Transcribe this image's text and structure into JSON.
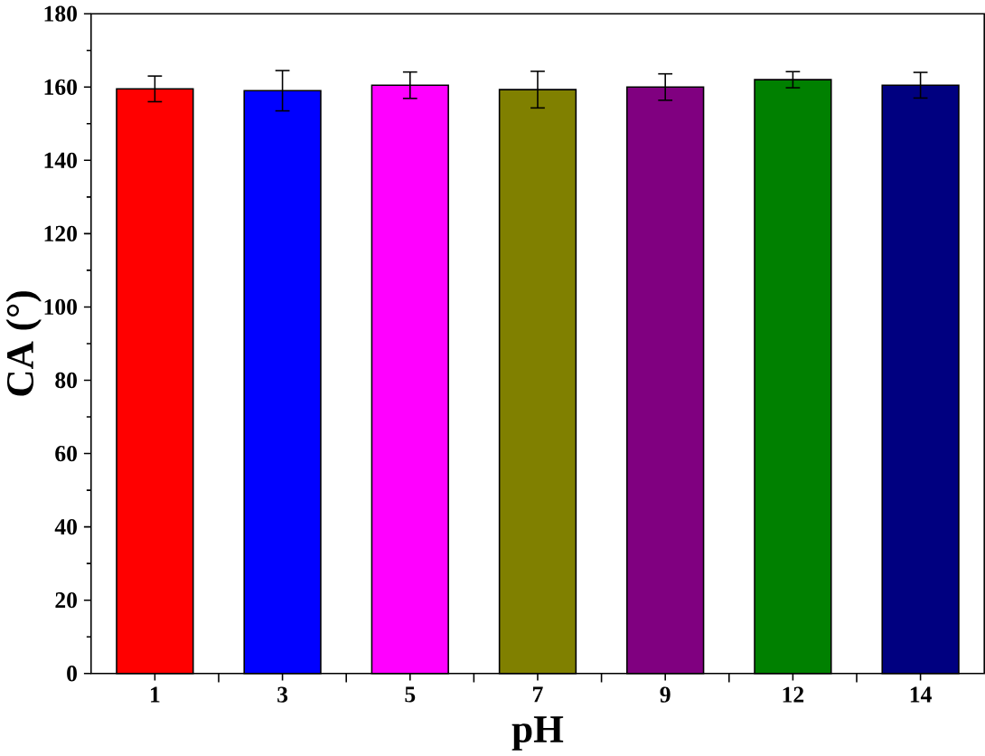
{
  "chart_data": {
    "type": "bar",
    "xlabel": "pH",
    "ylabel": "CA (°)",
    "categories": [
      "1",
      "3",
      "5",
      "7",
      "9",
      "12",
      "14"
    ],
    "values": [
      159.5,
      159,
      160.5,
      159.3,
      160,
      162,
      160.5
    ],
    "errors": [
      3.5,
      5.5,
      3.6,
      5,
      3.6,
      2.2,
      3.5
    ],
    "colors": [
      "#ff0000",
      "#0000ff",
      "#ff00ff",
      "#808000",
      "#800080",
      "#008000",
      "#000080"
    ],
    "ylim": [
      0,
      180
    ],
    "yticks": [
      0,
      20,
      40,
      60,
      80,
      100,
      120,
      140,
      160,
      180
    ],
    "grid": false
  }
}
